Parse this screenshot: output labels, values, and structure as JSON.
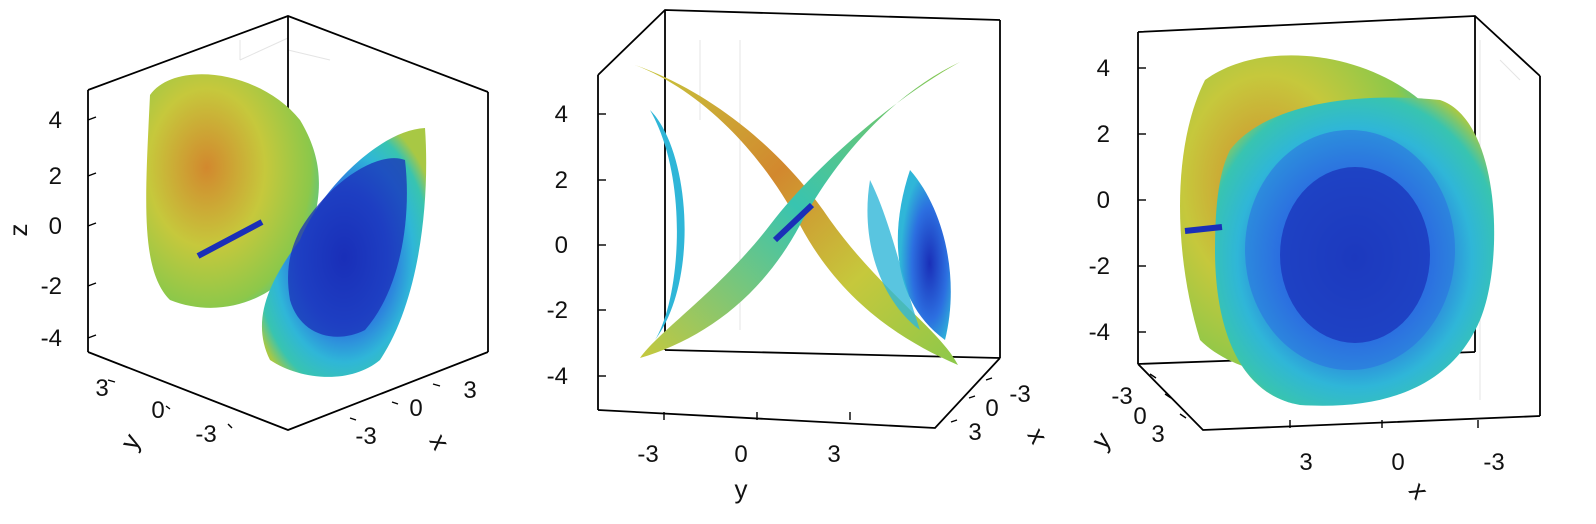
{
  "colors": {
    "dark_blue": "#1a2fb8",
    "blue": "#2c6fe0",
    "cyan": "#2fb6d8",
    "teal": "#38c4b0",
    "green": "#8cc84a",
    "yellow_green": "#c6c83c",
    "orange": "#d2882e",
    "axis": "#000000",
    "grid": "#e4e4e4"
  },
  "chart_data": [
    {
      "type": "scatter",
      "projection": "3d",
      "view": "isometric",
      "axes": {
        "x": {
          "label": "x",
          "ticks": [
            "-3",
            "0",
            "3"
          ]
        },
        "y": {
          "label": "y",
          "ticks": [
            "3",
            "0",
            "-3"
          ]
        },
        "z": {
          "label": "z",
          "ticks": [
            "4",
            "2",
            "0",
            "-2",
            "-4"
          ]
        }
      },
      "zlim": [
        -5,
        5
      ],
      "grid": true,
      "colormap": "parula"
    },
    {
      "type": "scatter",
      "projection": "3d",
      "view": "front (y–z)",
      "axes": {
        "x": {
          "label": "x",
          "ticks": [
            "-3",
            "0",
            "3"
          ]
        },
        "y": {
          "label": "y",
          "ticks": [
            "-3",
            "0",
            "3"
          ]
        },
        "z": {
          "label": "",
          "ticks": [
            "4",
            "2",
            "0",
            "-2",
            "-4"
          ]
        }
      },
      "zlim": [
        -5,
        5
      ],
      "grid": true,
      "colormap": "parula"
    },
    {
      "type": "scatter",
      "projection": "3d",
      "view": "side (x–z)",
      "axes": {
        "x": {
          "label": "x",
          "ticks": [
            "3",
            "0",
            "-3"
          ]
        },
        "y": {
          "label": "y",
          "ticks": [
            "-3",
            "0",
            "3"
          ]
        },
        "z": {
          "label": "",
          "ticks": [
            "4",
            "2",
            "0",
            "-2",
            "-4"
          ]
        }
      },
      "zlim": [
        -5,
        5
      ],
      "grid": true,
      "colormap": "parula"
    }
  ]
}
